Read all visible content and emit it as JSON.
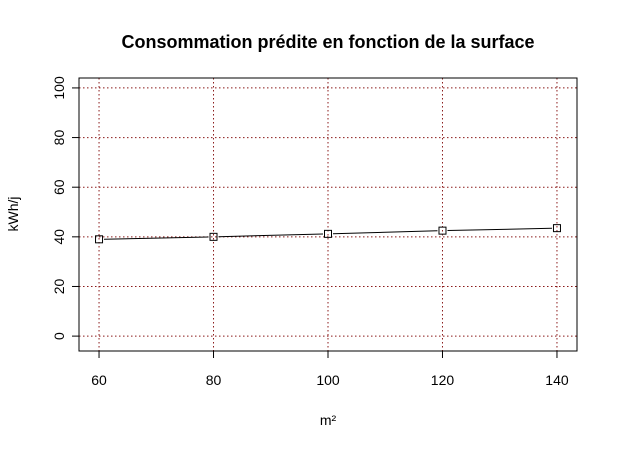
{
  "chart_data": {
    "type": "line",
    "title": "Consommation prédite en fonction de la surface",
    "xlabel": "m²",
    "ylabel": "kWh/j",
    "x": [
      60,
      80,
      100,
      120,
      140
    ],
    "series": [
      {
        "values": [
          39,
          40,
          41.2,
          42.5,
          43.5
        ]
      }
    ],
    "xlim": [
      56.5,
      143.5
    ],
    "ylim": [
      -6,
      104
    ],
    "xticks": [
      60,
      80,
      100,
      120,
      140
    ],
    "yticks": [
      0,
      20,
      40,
      60,
      80,
      100
    ],
    "grid": true,
    "grid_color": "#8b1a1a",
    "marker": "open-square",
    "line_color": "#000000"
  }
}
